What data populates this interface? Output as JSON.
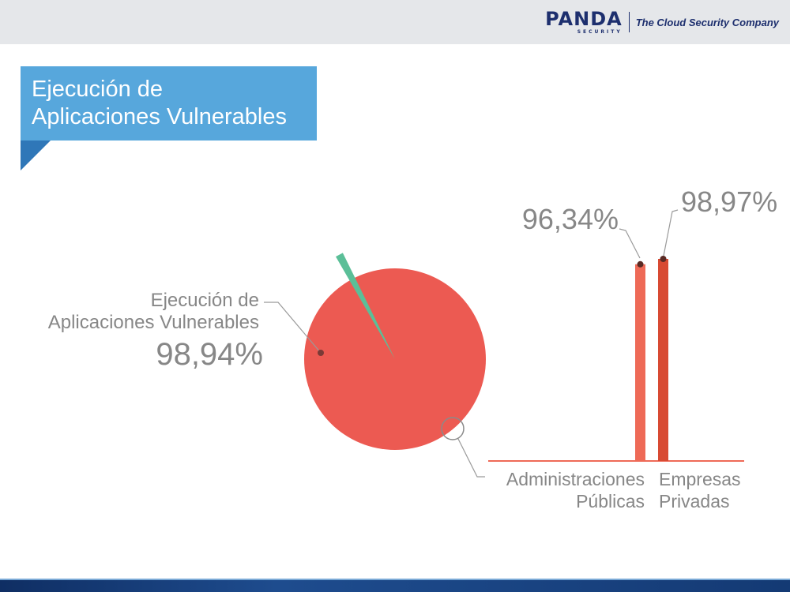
{
  "header": {
    "brand": "PANDA",
    "brand_sub": "SECURITY",
    "tagline": "The Cloud Security Company"
  },
  "banner": {
    "title_line1": "Ejecución de",
    "title_line2": "Aplicaciones Vulnerables"
  },
  "colors": {
    "header_bg": "#e5e7ea",
    "banner": "#57a7dc",
    "pie_main": "#ec5a52",
    "pie_slice": "#5bbf98",
    "bar_admin": "#ee6a57",
    "bar_empresas": "#d84a32",
    "label_text": "#878787",
    "brand": "#1d2f6e"
  },
  "chart_data": [
    {
      "type": "pie",
      "title": "",
      "slices": [
        {
          "label": "Ejecución de Aplicaciones Vulnerables",
          "value": 98.94,
          "display": "98,94%"
        },
        {
          "label": "",
          "value": 1.06,
          "display": ""
        }
      ],
      "annotation": {
        "line1": "Ejecución de",
        "line2": "Aplicaciones Vulnerables",
        "value": "98,94%"
      }
    },
    {
      "type": "bar",
      "title": "",
      "categories": [
        {
          "line1": "Administraciones",
          "line2": "Públicas"
        },
        {
          "line1": "Empresas",
          "line2": "Privadas"
        }
      ],
      "values": [
        96.34,
        98.97
      ],
      "value_labels": [
        "96,34%",
        "98,97%"
      ],
      "ylim": [
        0,
        100
      ],
      "grid": false
    }
  ]
}
